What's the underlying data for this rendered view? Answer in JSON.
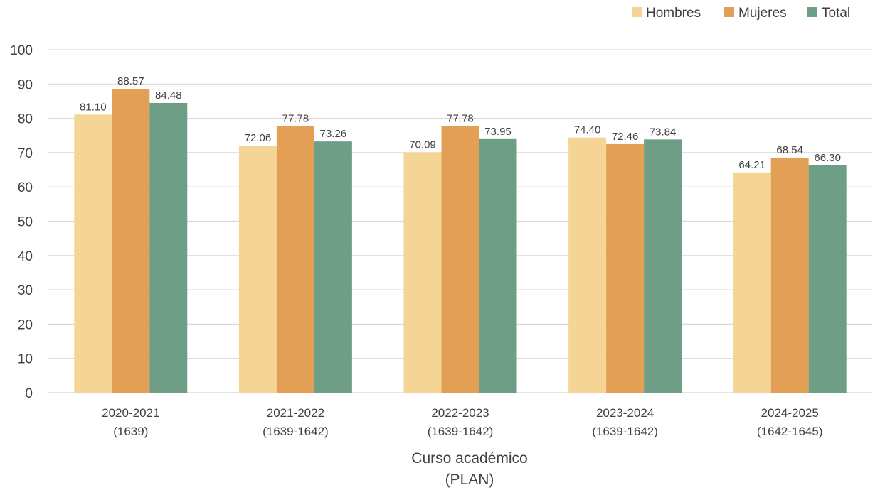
{
  "chart_data": {
    "type": "bar",
    "categories": [
      [
        "2020-2021",
        "(1639)"
      ],
      [
        "2021-2022",
        "(1639-1642)"
      ],
      [
        "2022-2023",
        "(1639-1642)"
      ],
      [
        "2023-2024",
        "(1639-1642)"
      ],
      [
        "2024-2025",
        "(1642-1645)"
      ]
    ],
    "series": [
      {
        "name": "Hombres",
        "color": "#F5D595",
        "values": [
          81.1,
          72.06,
          70.09,
          74.4,
          64.21
        ],
        "labels": [
          "81.10",
          "72.06",
          "70.09",
          "74.40",
          "64.21"
        ]
      },
      {
        "name": "Mujeres",
        "color": "#E29F55",
        "values": [
          88.57,
          77.78,
          77.78,
          72.46,
          68.54
        ],
        "labels": [
          "88.57",
          "77.78",
          "77.78",
          "72.46",
          "68.54"
        ]
      },
      {
        "name": "Total",
        "color": "#6E9E86",
        "values": [
          84.48,
          73.26,
          73.95,
          73.84,
          66.3
        ],
        "labels": [
          "84.48",
          "73.26",
          "73.95",
          "73.84",
          "66.30"
        ]
      }
    ],
    "xlabel": [
      "Curso académico",
      "(PLAN)"
    ],
    "ylabel": "",
    "ylim": [
      0,
      100
    ],
    "yticks": [
      0,
      10,
      20,
      30,
      40,
      50,
      60,
      70,
      80,
      90,
      100
    ],
    "grid": true,
    "legend": "top-right"
  }
}
